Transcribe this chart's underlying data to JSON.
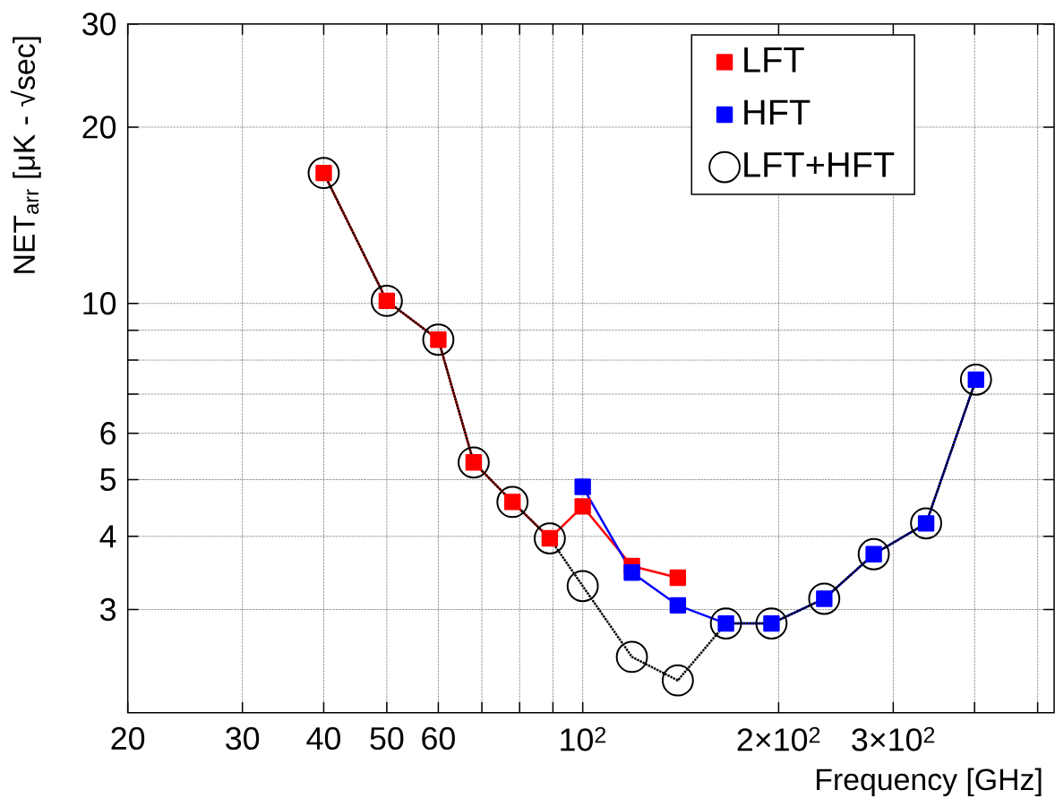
{
  "chart_data": {
    "type": "line",
    "xlabel": "Frequency [GHz]",
    "ylabel": "NET$_{arr}$ [μK - √sec]",
    "log": "xy",
    "xlim": [
      20,
      530
    ],
    "ylim": [
      2,
      30
    ],
    "xticks": [
      20,
      30,
      40,
      50,
      60,
      {
        "value": 70,
        "label": null
      },
      {
        "value": 80,
        "label": null
      },
      {
        "value": 90,
        "label": null
      },
      {
        "value": 100,
        "label": "10$^{2}$"
      },
      {
        "value": 200,
        "label": "2×10$^{2}$"
      },
      {
        "value": 300,
        "label": "3×10$^{2}$"
      },
      {
        "value": 400,
        "label": null
      },
      {
        "value": 500,
        "label": null
      }
    ],
    "yticks": [
      3,
      4,
      5,
      6,
      {
        "value": 7,
        "label": null
      },
      {
        "value": 8,
        "label": null
      },
      {
        "value": 9,
        "label": null
      },
      10,
      20,
      30
    ],
    "grid": true,
    "legend": "top right",
    "series": [
      {
        "name": "LFT",
        "color": "#ff0000",
        "marker": "square",
        "line_style": "solid",
        "x": [
          40,
          50,
          60,
          68,
          78,
          89,
          100,
          119,
          140
        ],
        "values": [
          16.7,
          10.1,
          8.67,
          5.35,
          4.58,
          3.97,
          4.5,
          3.56,
          3.4
        ]
      },
      {
        "name": "HFT",
        "color": "#0000ff",
        "marker": "square",
        "line_style": "solid",
        "x": [
          100,
          119,
          140,
          166,
          195,
          235,
          280,
          337,
          402
        ],
        "values": [
          4.86,
          3.47,
          3.05,
          2.84,
          2.84,
          3.13,
          3.73,
          4.21,
          7.41
        ]
      },
      {
        "name": "LFT+HFT",
        "color": "#000000",
        "marker": "circle",
        "line_style": "dotted",
        "x": [
          40,
          50,
          60,
          68,
          78,
          89,
          100,
          119,
          140,
          166,
          195,
          235,
          280,
          337,
          402
        ],
        "values": [
          16.7,
          10.1,
          8.67,
          5.35,
          4.58,
          3.97,
          3.29,
          2.49,
          2.27,
          2.84,
          2.84,
          3.13,
          3.73,
          4.21,
          7.41
        ]
      }
    ]
  }
}
